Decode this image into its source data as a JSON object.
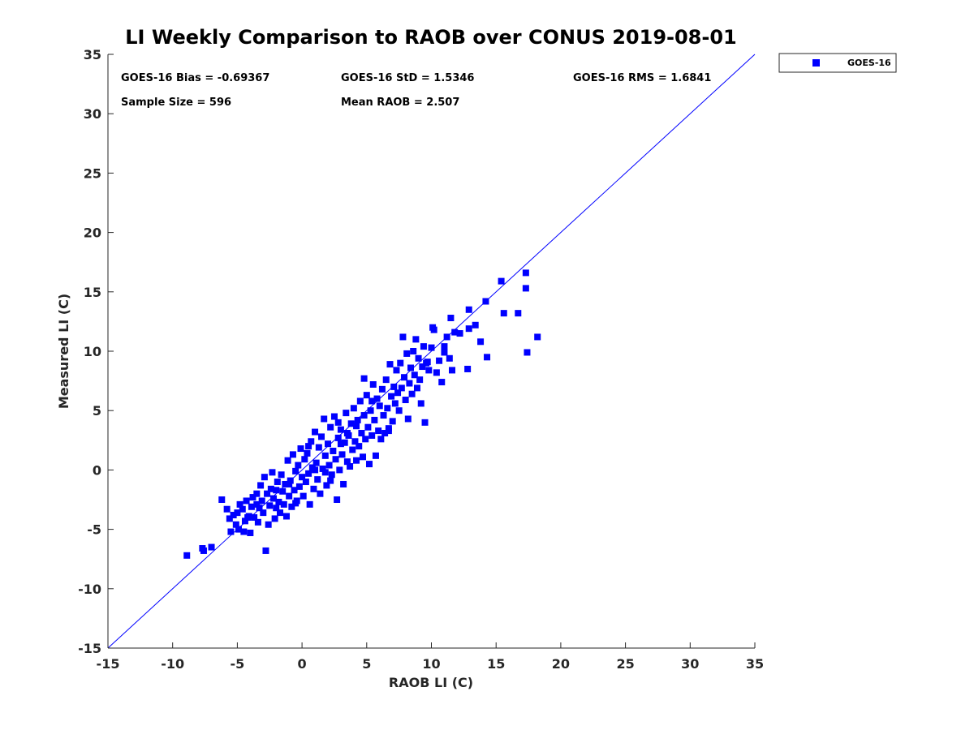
{
  "chart_data": {
    "type": "scatter",
    "title": "LI Weekly Comparison to RAOB over CONUS 2019-08-01",
    "xlabel": "RAOB LI (C)",
    "ylabel": "Measured LI (C)",
    "xlim": [
      -15,
      35
    ],
    "ylim": [
      -15,
      35
    ],
    "xticks": [
      -15,
      -10,
      -5,
      0,
      5,
      10,
      15,
      20,
      25,
      30,
      35
    ],
    "yticks": [
      -15,
      -10,
      -5,
      0,
      5,
      10,
      15,
      20,
      25,
      30,
      35
    ],
    "grid": false,
    "legend": {
      "position": "outside-top-right",
      "entries": [
        "GOES-16"
      ]
    },
    "reference_line": {
      "name": "1:1 line",
      "x": [
        -15,
        35
      ],
      "y": [
        -15,
        35
      ]
    },
    "annotations": [
      "GOES-16 Bias = -0.69367",
      "GOES-16 StD = 1.5346",
      "GOES-16 RMS = 1.6841",
      "Sample Size = 596",
      "Mean RAOB = 2.507"
    ],
    "series": [
      {
        "name": "GOES-16",
        "color": "#0000ff",
        "marker": "square",
        "points": [
          [
            -8.9,
            -7.2
          ],
          [
            -7.7,
            -6.6
          ],
          [
            -7.6,
            -6.8
          ],
          [
            -7.0,
            -6.5
          ],
          [
            -6.2,
            -2.5
          ],
          [
            -5.8,
            -3.3
          ],
          [
            -5.6,
            -4.1
          ],
          [
            -5.5,
            -5.2
          ],
          [
            -5.3,
            -3.8
          ],
          [
            -5.1,
            -4.6
          ],
          [
            -5.0,
            -3.6
          ],
          [
            -4.9,
            -5.0
          ],
          [
            -4.8,
            -2.9
          ],
          [
            -4.6,
            -3.3
          ],
          [
            -4.5,
            -5.2
          ],
          [
            -4.4,
            -4.3
          ],
          [
            -4.3,
            -2.6
          ],
          [
            -4.1,
            -3.9
          ],
          [
            -4.0,
            -5.3
          ],
          [
            -3.9,
            -3.1
          ],
          [
            -3.8,
            -2.3
          ],
          [
            -3.7,
            -4.0
          ],
          [
            -3.5,
            -2.0
          ],
          [
            -3.4,
            -4.4
          ],
          [
            -3.3,
            -3.2
          ],
          [
            -3.2,
            -1.3
          ],
          [
            -3.1,
            -2.6
          ],
          [
            -3.0,
            -3.6
          ],
          [
            -2.9,
            -0.6
          ],
          [
            -2.8,
            -6.8
          ],
          [
            -2.7,
            -2.0
          ],
          [
            -2.6,
            -4.6
          ],
          [
            -2.5,
            -3.0
          ],
          [
            -2.4,
            -1.6
          ],
          [
            -2.3,
            -0.2
          ],
          [
            -2.2,
            -2.4
          ],
          [
            -2.1,
            -4.1
          ],
          [
            -2.0,
            -3.2
          ],
          [
            -1.9,
            -1.0
          ],
          [
            -1.8,
            -2.7
          ],
          [
            -1.7,
            -3.6
          ],
          [
            -1.6,
            -0.4
          ],
          [
            -1.5,
            -1.8
          ],
          [
            -1.4,
            -2.9
          ],
          [
            -1.3,
            -1.2
          ],
          [
            -1.2,
            -3.9
          ],
          [
            -1.1,
            0.8
          ],
          [
            -1.0,
            -2.2
          ],
          [
            -0.9,
            -0.9
          ],
          [
            -0.8,
            -3.1
          ],
          [
            -0.7,
            1.3
          ],
          [
            -0.6,
            -1.7
          ],
          [
            -0.5,
            -0.1
          ],
          [
            -0.4,
            -2.6
          ],
          [
            -0.3,
            0.4
          ],
          [
            -0.2,
            -1.4
          ],
          [
            -0.1,
            1.8
          ],
          [
            0.0,
            -0.6
          ],
          [
            0.1,
            -2.2
          ],
          [
            0.2,
            0.9
          ],
          [
            0.3,
            -1.0
          ],
          [
            0.4,
            1.4
          ],
          [
            0.5,
            -0.3
          ],
          [
            0.6,
            -2.9
          ],
          [
            0.7,
            2.4
          ],
          [
            0.8,
            0.2
          ],
          [
            0.9,
            -1.6
          ],
          [
            1.0,
            3.2
          ],
          [
            1.1,
            0.6
          ],
          [
            1.2,
            -0.8
          ],
          [
            1.3,
            1.9
          ],
          [
            1.4,
            -2.0
          ],
          [
            1.5,
            2.8
          ],
          [
            1.6,
            0.1
          ],
          [
            1.7,
            4.3
          ],
          [
            1.8,
            1.2
          ],
          [
            1.9,
            -1.3
          ],
          [
            2.0,
            2.2
          ],
          [
            2.1,
            0.4
          ],
          [
            2.2,
            3.6
          ],
          [
            2.3,
            -0.4
          ],
          [
            2.4,
            1.6
          ],
          [
            2.5,
            4.5
          ],
          [
            2.6,
            0.9
          ],
          [
            2.7,
            -2.5
          ],
          [
            2.8,
            2.7
          ],
          [
            2.9,
            0.0
          ],
          [
            3.0,
            3.4
          ],
          [
            3.1,
            1.3
          ],
          [
            3.2,
            -1.2
          ],
          [
            3.3,
            2.3
          ],
          [
            3.4,
            4.8
          ],
          [
            3.5,
            0.7
          ],
          [
            3.6,
            2.9
          ],
          [
            3.7,
            0.3
          ],
          [
            3.8,
            3.9
          ],
          [
            3.9,
            1.7
          ],
          [
            4.0,
            5.2
          ],
          [
            4.1,
            2.4
          ],
          [
            4.2,
            0.8
          ],
          [
            4.3,
            4.2
          ],
          [
            4.4,
            2.0
          ],
          [
            4.5,
            5.8
          ],
          [
            4.6,
            3.1
          ],
          [
            4.7,
            1.1
          ],
          [
            4.8,
            4.6
          ],
          [
            4.9,
            2.6
          ],
          [
            5.0,
            6.3
          ],
          [
            5.1,
            3.6
          ],
          [
            5.2,
            0.5
          ],
          [
            5.3,
            5.0
          ],
          [
            5.4,
            2.9
          ],
          [
            5.5,
            7.2
          ],
          [
            5.6,
            4.2
          ],
          [
            5.7,
            1.2
          ],
          [
            5.8,
            6.0
          ],
          [
            5.9,
            3.3
          ],
          [
            6.0,
            5.4
          ],
          [
            6.1,
            2.6
          ],
          [
            6.2,
            6.8
          ],
          [
            6.3,
            4.6
          ],
          [
            6.4,
            3.1
          ],
          [
            6.5,
            7.6
          ],
          [
            6.6,
            5.2
          ],
          [
            6.7,
            3.5
          ],
          [
            6.8,
            8.9
          ],
          [
            6.9,
            6.2
          ],
          [
            7.0,
            4.1
          ],
          [
            7.1,
            7.0
          ],
          [
            7.2,
            5.6
          ],
          [
            7.3,
            8.4
          ],
          [
            7.4,
            6.5
          ],
          [
            7.5,
            5.0
          ],
          [
            7.6,
            9.0
          ],
          [
            7.7,
            6.9
          ],
          [
            7.8,
            11.2
          ],
          [
            7.9,
            7.8
          ],
          [
            8.0,
            5.9
          ],
          [
            8.1,
            9.8
          ],
          [
            8.2,
            4.3
          ],
          [
            8.3,
            7.3
          ],
          [
            8.4,
            8.6
          ],
          [
            8.5,
            6.4
          ],
          [
            8.6,
            10.0
          ],
          [
            8.7,
            8.0
          ],
          [
            8.8,
            11.0
          ],
          [
            8.9,
            6.9
          ],
          [
            9.0,
            9.4
          ],
          [
            9.1,
            7.6
          ],
          [
            9.2,
            5.6
          ],
          [
            9.3,
            8.7
          ],
          [
            9.4,
            10.4
          ],
          [
            9.5,
            4.0
          ],
          [
            9.6,
            9.0
          ],
          [
            9.8,
            8.4
          ],
          [
            10.0,
            10.3
          ],
          [
            10.2,
            11.8
          ],
          [
            10.4,
            8.2
          ],
          [
            10.6,
            9.2
          ],
          [
            10.8,
            7.4
          ],
          [
            11.0,
            10.4
          ],
          [
            11.2,
            11.2
          ],
          [
            11.4,
            9.4
          ],
          [
            11.5,
            12.8
          ],
          [
            11.6,
            8.4
          ],
          [
            11.8,
            11.6
          ],
          [
            12.2,
            11.5
          ],
          [
            12.8,
            8.5
          ],
          [
            12.9,
            11.9
          ],
          [
            12.9,
            13.5
          ],
          [
            13.4,
            12.2
          ],
          [
            13.8,
            10.8
          ],
          [
            14.2,
            14.2
          ],
          [
            14.3,
            9.5
          ],
          [
            15.4,
            15.9
          ],
          [
            15.6,
            13.2
          ],
          [
            16.7,
            13.2
          ],
          [
            17.3,
            15.3
          ],
          [
            17.3,
            16.6
          ],
          [
            17.4,
            9.9
          ],
          [
            18.2,
            11.2
          ],
          [
            10.1,
            12.0
          ],
          [
            9.7,
            9.1
          ],
          [
            11.0,
            9.9
          ],
          [
            6.7,
            3.3
          ],
          [
            5.4,
            5.8
          ],
          [
            4.8,
            7.7
          ],
          [
            3.0,
            2.2
          ],
          [
            2.2,
            -0.9
          ],
          [
            1.0,
            0.0
          ],
          [
            -0.5,
            -2.8
          ],
          [
            -1.0,
            -1.2
          ],
          [
            -2.0,
            -1.7
          ],
          [
            -3.5,
            -2.9
          ],
          [
            -4.2,
            -4.0
          ],
          [
            0.5,
            2.0
          ],
          [
            2.8,
            4.0
          ],
          [
            3.5,
            3.1
          ],
          [
            4.2,
            3.7
          ],
          [
            1.8,
            -0.2
          ]
        ]
      }
    ]
  }
}
